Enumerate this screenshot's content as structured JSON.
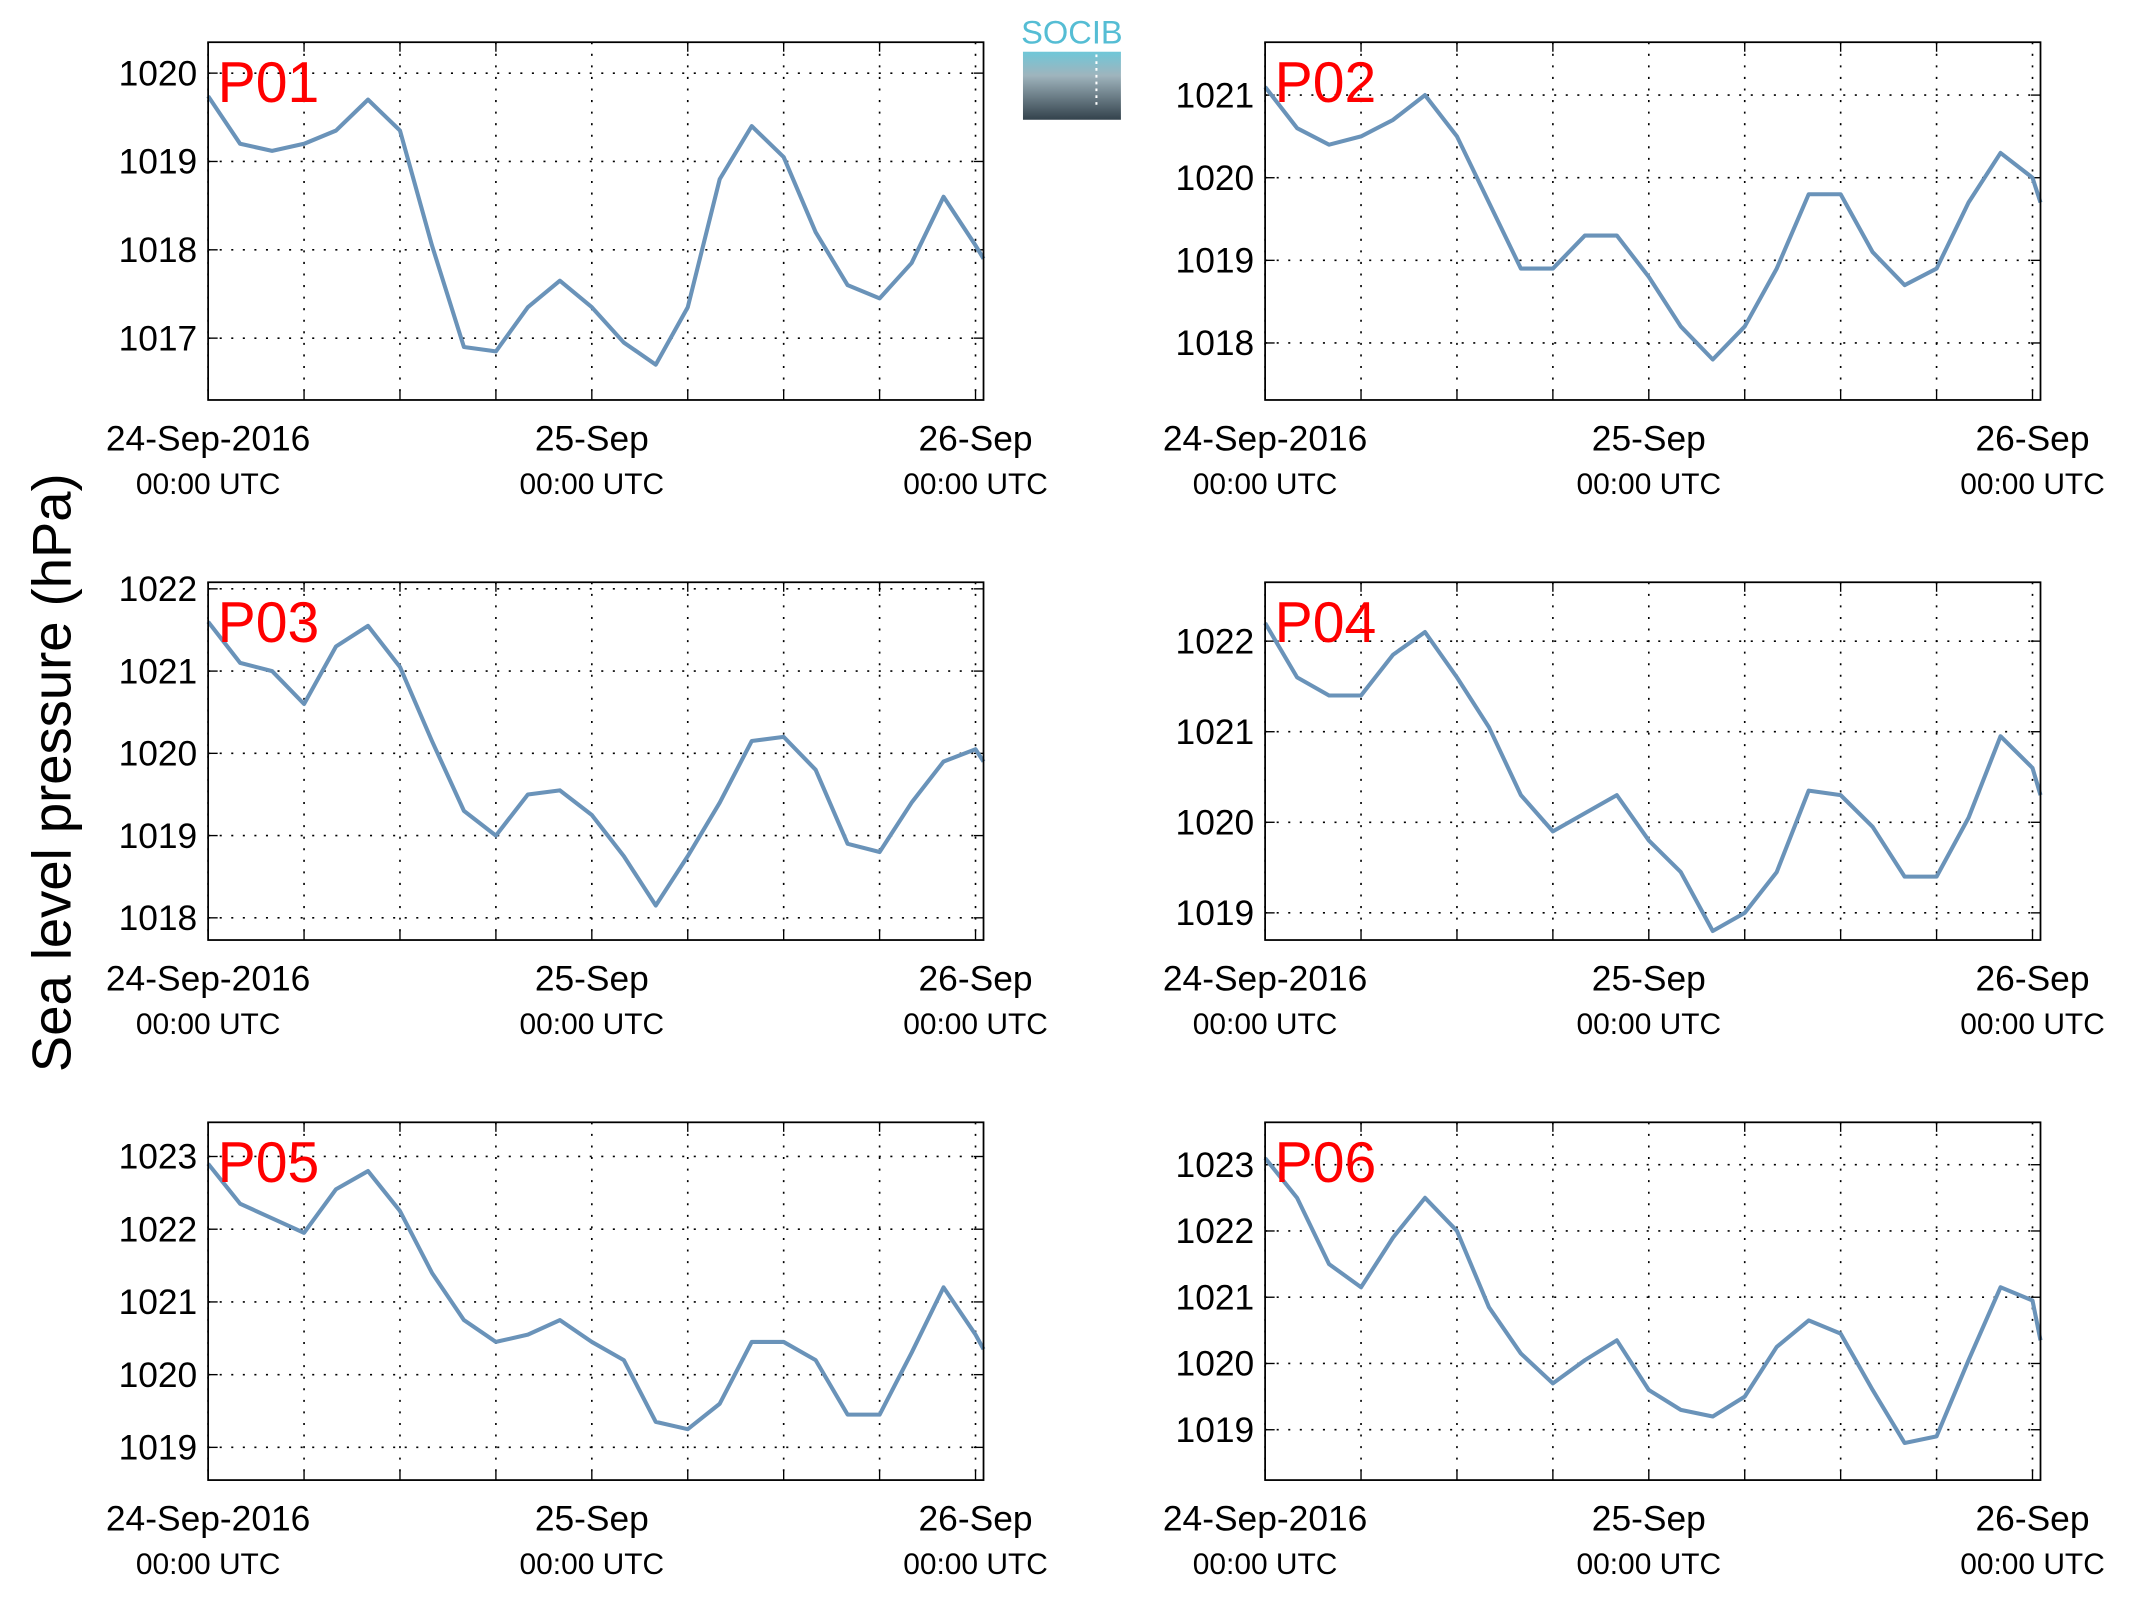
{
  "ylabel": "Sea level pressure (hPa)",
  "logo": "SOCIB",
  "chart_data": [
    {
      "type": "line",
      "title": "P01",
      "color": "#6a93b9",
      "x": [
        0,
        2,
        4,
        6,
        8,
        10,
        12,
        14,
        16,
        18,
        20,
        22,
        24,
        26,
        28,
        30,
        32,
        34,
        36,
        38,
        40,
        42,
        44,
        46,
        48,
        48.5
      ],
      "values": [
        1019.74,
        1019.2,
        1019.12,
        1019.2,
        1019.35,
        1019.7,
        1019.35,
        1018.05,
        1016.9,
        1016.85,
        1017.35,
        1017.65,
        1017.35,
        1016.95,
        1016.7,
        1017.35,
        1018.8,
        1019.4,
        1019.05,
        1018.2,
        1017.6,
        1017.45,
        1017.85,
        1018.6,
        1018.05,
        1017.9
      ],
      "xlim": [
        0,
        48.5
      ],
      "ylim": [
        1016.3,
        1020.35
      ],
      "yticks": [
        1017,
        1018,
        1019,
        1020
      ],
      "xticks": [
        {
          "value": 0,
          "label": "24-Sep-2016"
        },
        {
          "value": 24,
          "label": "25-Sep"
        },
        {
          "value": 48,
          "label": "26-Sep"
        }
      ],
      "xtick_sublabels": [
        "00:00 UTC",
        "00:00 UTC",
        "00:00 UTC"
      ],
      "xgrid": [
        6,
        12,
        18,
        30,
        36,
        42
      ],
      "grid": true
    },
    {
      "type": "line",
      "title": "P02",
      "color": "#6a93b9",
      "x": [
        0,
        2,
        4,
        6,
        8,
        10,
        12,
        14,
        16,
        18,
        20,
        22,
        24,
        26,
        28,
        30,
        32,
        34,
        36,
        38,
        40,
        42,
        44,
        46,
        48,
        48.5
      ],
      "values": [
        1021.1,
        1020.6,
        1020.4,
        1020.5,
        1020.7,
        1021.0,
        1020.5,
        1019.7,
        1018.9,
        1018.9,
        1019.3,
        1019.3,
        1018.8,
        1018.2,
        1017.8,
        1018.2,
        1018.9,
        1019.8,
        1019.8,
        1019.1,
        1018.7,
        1018.9,
        1019.7,
        1020.3,
        1020.0,
        1019.7
      ],
      "xlim": [
        0,
        48.5
      ],
      "ylim": [
        1017.31,
        1021.64
      ],
      "yticks": [
        1018,
        1019,
        1020,
        1021
      ],
      "xticks": [
        {
          "value": 0,
          "label": "24-Sep-2016"
        },
        {
          "value": 24,
          "label": "25-Sep"
        },
        {
          "value": 48,
          "label": "26-Sep"
        }
      ],
      "xtick_sublabels": [
        "00:00 UTC",
        "00:00 UTC",
        "00:00 UTC"
      ],
      "xgrid": [
        6,
        12,
        18,
        30,
        36,
        42
      ],
      "grid": true
    },
    {
      "type": "line",
      "title": "P03",
      "color": "#6a93b9",
      "x": [
        0,
        2,
        4,
        6,
        8,
        10,
        12,
        14,
        16,
        18,
        20,
        22,
        24,
        26,
        28,
        30,
        32,
        34,
        36,
        38,
        40,
        42,
        44,
        46,
        48,
        48.5
      ],
      "values": [
        1021.6,
        1021.1,
        1021.0,
        1020.6,
        1021.3,
        1021.55,
        1021.05,
        1020.15,
        1019.3,
        1019.0,
        1019.5,
        1019.55,
        1019.25,
        1018.75,
        1018.15,
        1018.75,
        1019.4,
        1020.15,
        1020.2,
        1019.8,
        1018.9,
        1018.8,
        1019.4,
        1019.9,
        1020.05,
        1019.9
      ],
      "xlim": [
        0,
        48.5
      ],
      "ylim": [
        1017.73,
        1022.08
      ],
      "yticks": [
        1018,
        1019,
        1020,
        1021,
        1022
      ],
      "xticks": [
        {
          "value": 0,
          "label": "24-Sep-2016"
        },
        {
          "value": 24,
          "label": "25-Sep"
        },
        {
          "value": 48,
          "label": "26-Sep"
        }
      ],
      "xtick_sublabels": [
        "00:00 UTC",
        "00:00 UTC",
        "00:00 UTC"
      ],
      "xgrid": [
        6,
        12,
        18,
        30,
        36,
        42
      ],
      "grid": true
    },
    {
      "type": "line",
      "title": "P04",
      "color": "#6a93b9",
      "x": [
        0,
        2,
        4,
        6,
        8,
        10,
        12,
        14,
        16,
        18,
        20,
        22,
        24,
        26,
        28,
        30,
        32,
        34,
        36,
        38,
        40,
        42,
        44,
        46,
        48,
        48.5
      ],
      "values": [
        1022.2,
        1021.6,
        1021.4,
        1021.4,
        1021.85,
        1022.1,
        1021.6,
        1021.05,
        1020.3,
        1019.9,
        1020.1,
        1020.3,
        1019.8,
        1019.45,
        1018.8,
        1019.0,
        1019.45,
        1020.35,
        1020.3,
        1019.95,
        1019.4,
        1019.4,
        1020.05,
        1020.95,
        1020.6,
        1020.3
      ],
      "xlim": [
        0,
        48.5
      ],
      "ylim": [
        1018.7,
        1022.65
      ],
      "yticks": [
        1019,
        1020,
        1021,
        1022
      ],
      "xticks": [
        {
          "value": 0,
          "label": "24-Sep-2016"
        },
        {
          "value": 24,
          "label": "25-Sep"
        },
        {
          "value": 48,
          "label": "26-Sep"
        }
      ],
      "xtick_sublabels": [
        "00:00 UTC",
        "00:00 UTC",
        "00:00 UTC"
      ],
      "xgrid": [
        6,
        12,
        18,
        30,
        36,
        42
      ],
      "grid": true
    },
    {
      "type": "line",
      "title": "P05",
      "color": "#6a93b9",
      "x": [
        0,
        2,
        4,
        6,
        8,
        10,
        12,
        14,
        16,
        18,
        20,
        22,
        24,
        26,
        28,
        30,
        32,
        34,
        36,
        38,
        40,
        42,
        44,
        46,
        48,
        48.5
      ],
      "values": [
        1022.9,
        1022.35,
        1022.15,
        1021.95,
        1022.55,
        1022.8,
        1022.25,
        1021.4,
        1020.75,
        1020.45,
        1020.55,
        1020.75,
        1020.45,
        1020.2,
        1019.35,
        1019.25,
        1019.6,
        1020.45,
        1020.45,
        1020.2,
        1019.45,
        1019.45,
        1020.3,
        1021.2,
        1020.55,
        1020.35
      ],
      "xlim": [
        0,
        48.5
      ],
      "ylim": [
        1018.55,
        1023.47
      ],
      "yticks": [
        1019,
        1020,
        1021,
        1022,
        1023
      ],
      "xticks": [
        {
          "value": 0,
          "label": "24-Sep-2016"
        },
        {
          "value": 24,
          "label": "25-Sep"
        },
        {
          "value": 48,
          "label": "26-Sep"
        }
      ],
      "xtick_sublabels": [
        "00:00 UTC",
        "00:00 UTC",
        "00:00 UTC"
      ],
      "xgrid": [
        6,
        12,
        18,
        30,
        36,
        42
      ],
      "grid": true
    },
    {
      "type": "line",
      "title": "P06",
      "color": "#6a93b9",
      "x": [
        0,
        2,
        4,
        6,
        8,
        10,
        12,
        14,
        16,
        18,
        20,
        22,
        24,
        26,
        28,
        30,
        32,
        34,
        36,
        38,
        40,
        42,
        44,
        46,
        48,
        48.5
      ],
      "values": [
        1023.1,
        1022.5,
        1021.5,
        1021.15,
        1021.9,
        1022.5,
        1022.0,
        1020.85,
        1020.15,
        1019.7,
        1020.05,
        1020.35,
        1019.6,
        1019.3,
        1019.2,
        1019.5,
        1020.25,
        1020.65,
        1020.45,
        1019.6,
        1018.8,
        1018.9,
        1020.05,
        1021.15,
        1020.95,
        1020.35
      ],
      "xlim": [
        0,
        48.5
      ],
      "ylim": [
        1018.24,
        1023.64
      ],
      "yticks": [
        1019,
        1020,
        1021,
        1022,
        1023
      ],
      "xticks": [
        {
          "value": 0,
          "label": "24-Sep-2016"
        },
        {
          "value": 24,
          "label": "25-Sep"
        },
        {
          "value": 48,
          "label": "26-Sep"
        }
      ],
      "xtick_sublabels": [
        "00:00 UTC",
        "00:00 UTC",
        "00:00 UTC"
      ],
      "xgrid": [
        6,
        12,
        18,
        30,
        36,
        42
      ],
      "grid": true
    }
  ]
}
